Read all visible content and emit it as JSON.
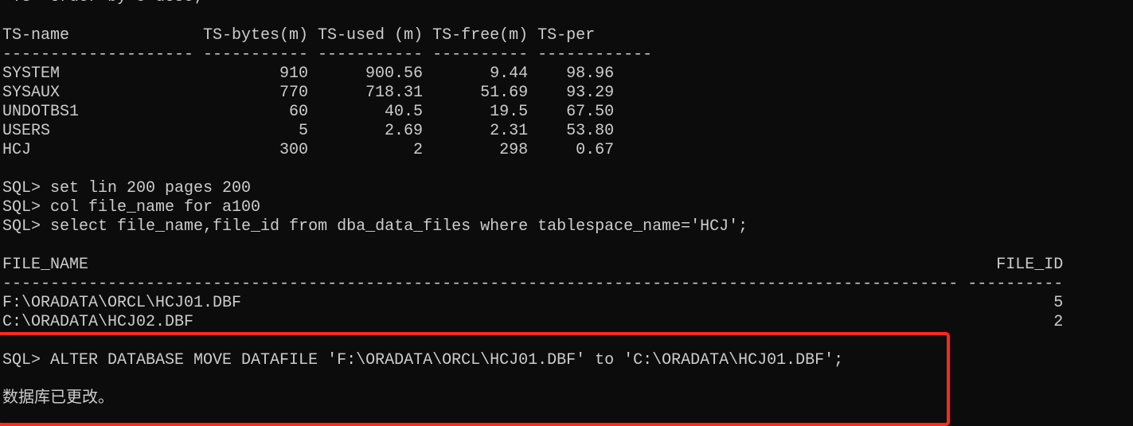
{
  "terminal": {
    "partial_line": " TS  order by 5 desc;",
    "ts_table": {
      "headers": [
        "TS-name",
        "TS-bytes(m)",
        "TS-used (m)",
        "TS-free(m)",
        "TS-per"
      ],
      "widths": [
        20,
        11,
        11,
        10,
        12
      ],
      "rows": [
        [
          "SYSTEM",
          "910",
          "900.56",
          "9.44",
          "98.96"
        ],
        [
          "SYSAUX",
          "770",
          "718.31",
          "51.69",
          "93.29"
        ],
        [
          "UNDOTBS1",
          "60",
          "40.5",
          "19.5",
          "67.50"
        ],
        [
          "USERS",
          "5",
          "2.69",
          "2.31",
          "53.80"
        ],
        [
          "HCJ",
          "300",
          "2",
          "298",
          "0.67"
        ]
      ]
    },
    "commands1": [
      "SQL> set lin 200 pages 200",
      "SQL> col file_name for a100",
      "SQL> select file_name,file_id from dba_data_files where tablespace_name='HCJ';"
    ],
    "file_table": {
      "headers": [
        "FILE_NAME",
        "FILE_ID"
      ],
      "widths": [
        100,
        10
      ],
      "rows": [
        [
          "F:\\ORADATA\\ORCL\\HCJ01.DBF",
          "5"
        ],
        [
          "C:\\ORADATA\\HCJ02.DBF",
          "2"
        ]
      ]
    },
    "highlighted": {
      "command": "SQL> ALTER DATABASE MOVE DATAFILE 'F:\\ORADATA\\ORCL\\HCJ01.DBF' to 'C:\\ORADATA\\HCJ01.DBF';",
      "result": "数据库已更改。",
      "highlight_color": "#ff2a1a"
    }
  }
}
